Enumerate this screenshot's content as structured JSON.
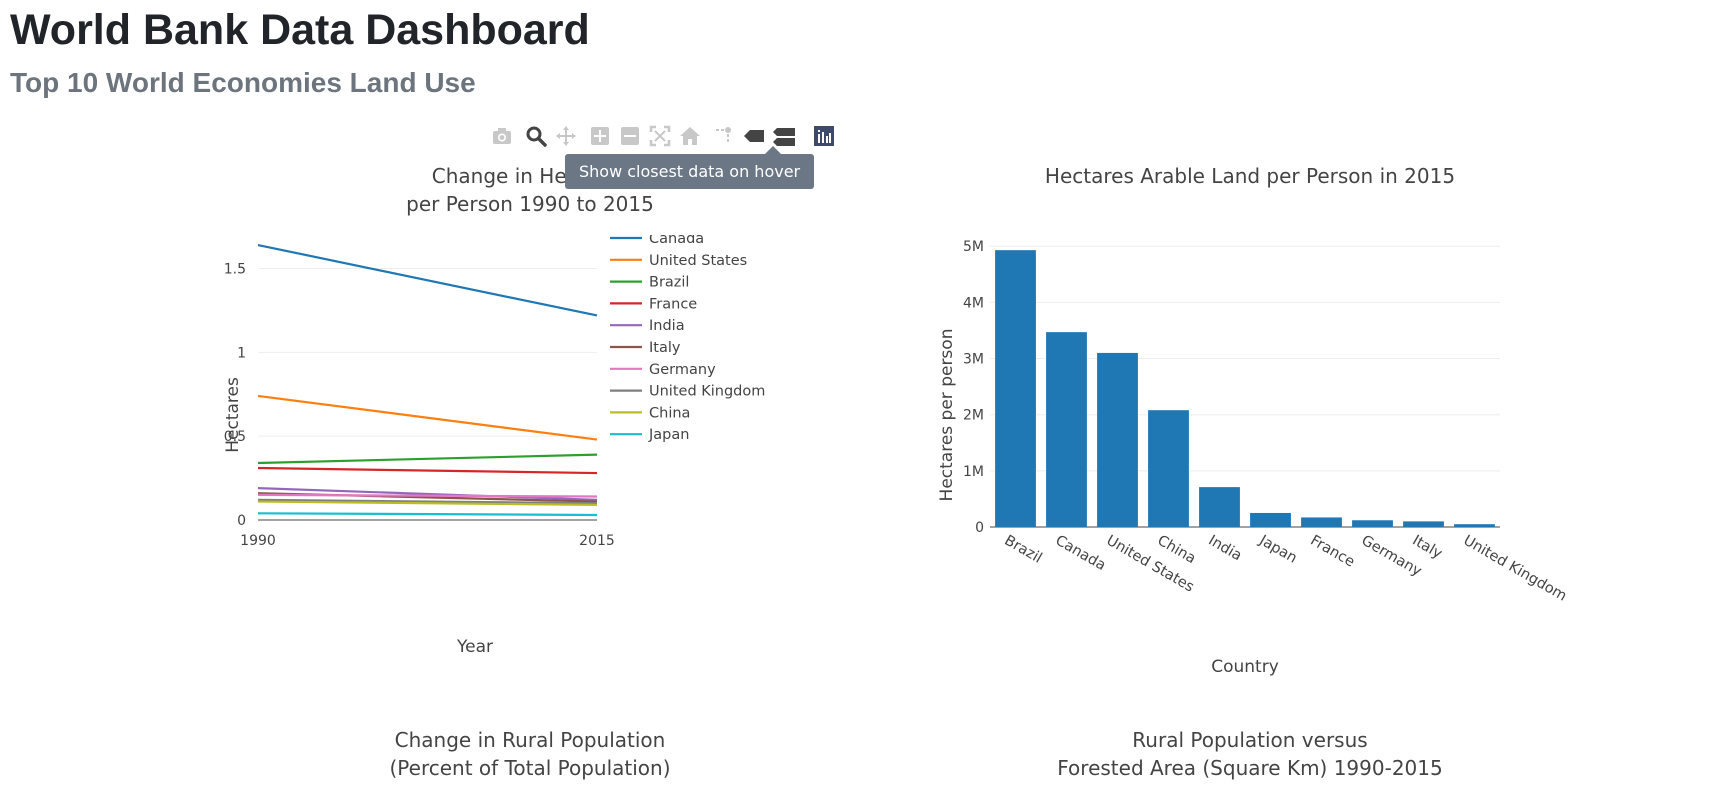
{
  "header": {
    "title": "World Bank Data Dashboard",
    "subtitle": "Top 10 World Economies Land Use"
  },
  "modebar": {
    "tooltip": "Show closest data on hover",
    "icons": [
      "camera-icon",
      "zoom-icon",
      "pan-icon",
      "zoom-in-icon",
      "zoom-out-icon",
      "autoscale-icon",
      "reset-axes-icon",
      "spike-lines-icon",
      "hover-closest-icon",
      "hover-compare-icon",
      "plotly-logo-icon"
    ]
  },
  "chart_titles": {
    "bottom_left_line1": "Change in Rural Population",
    "bottom_left_line2": "(Percent of Total Population)",
    "bottom_right_line1": "Rural Population versus",
    "bottom_right_line2": "Forested Area (Square Km) 1990-2015"
  },
  "chart_data": [
    {
      "type": "line",
      "title_line1": "Change in Hectares",
      "title_line2": "per Person 1990 to 2015",
      "xlabel": "Year",
      "ylabel": "Hectares",
      "x": [
        1990,
        2015
      ],
      "xticks": [
        "1990",
        "2015"
      ],
      "ylim": [
        0,
        1.7
      ],
      "yticks": [
        {
          "v": 0,
          "label": "0"
        },
        {
          "v": 0.5,
          "label": "0.5"
        },
        {
          "v": 1,
          "label": "1"
        },
        {
          "v": 1.5,
          "label": "1.5"
        }
      ],
      "grid": true,
      "legend_position": "right",
      "series": [
        {
          "name": "Canada",
          "values": [
            1.64,
            1.22
          ],
          "color": "#1f77b4"
        },
        {
          "name": "United States",
          "values": [
            0.74,
            0.48
          ],
          "color": "#ff7f0e"
        },
        {
          "name": "Brazil",
          "values": [
            0.34,
            0.39
          ],
          "color": "#2ca02c"
        },
        {
          "name": "France",
          "values": [
            0.31,
            0.28
          ],
          "color": "#d62728"
        },
        {
          "name": "India",
          "values": [
            0.19,
            0.12
          ],
          "color": "#9467bd"
        },
        {
          "name": "Italy",
          "values": [
            0.16,
            0.11
          ],
          "color": "#8c564b"
        },
        {
          "name": "Germany",
          "values": [
            0.15,
            0.14
          ],
          "color": "#e377c2"
        },
        {
          "name": "United Kingdom",
          "values": [
            0.12,
            0.1
          ],
          "color": "#7f7f7f"
        },
        {
          "name": "China",
          "values": [
            0.11,
            0.09
          ],
          "color": "#bcbd22"
        },
        {
          "name": "Japan",
          "values": [
            0.04,
            0.03
          ],
          "color": "#17becf"
        }
      ]
    },
    {
      "type": "bar",
      "title": "Hectares Arable Land per Person in 2015",
      "xlabel": "Country",
      "ylabel": "Hectares per person",
      "ylim": [
        0,
        5200000
      ],
      "yticks": [
        {
          "v": 0,
          "label": "0"
        },
        {
          "v": 1000000,
          "label": "1M"
        },
        {
          "v": 2000000,
          "label": "2M"
        },
        {
          "v": 3000000,
          "label": "3M"
        },
        {
          "v": 4000000,
          "label": "4M"
        },
        {
          "v": 5000000,
          "label": "5M"
        }
      ],
      "grid": true,
      "bar_color": "#1f77b4",
      "categories": [
        "Brazil",
        "Canada",
        "United States",
        "China",
        "India",
        "Japan",
        "France",
        "Germany",
        "Italy",
        "United Kingdom"
      ],
      "values": [
        4930000,
        3470000,
        3100000,
        2080000,
        710000,
        250000,
        170000,
        120000,
        100000,
        50000
      ]
    }
  ]
}
